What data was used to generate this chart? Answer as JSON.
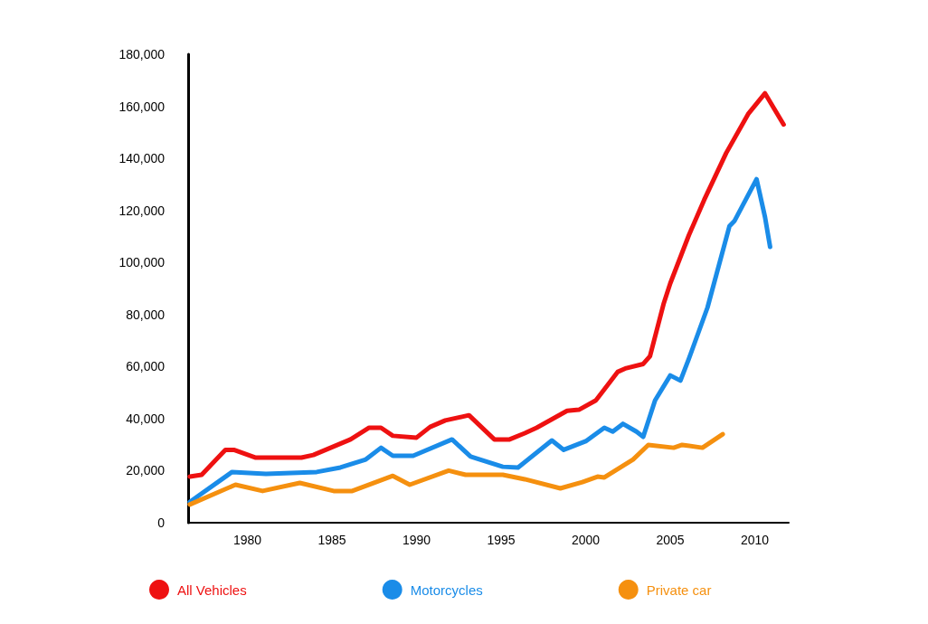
{
  "chart_data": {
    "type": "line",
    "xlim": [
      1976.5,
      2012
    ],
    "xticks": [
      1980,
      1985,
      1990,
      1995,
      2000,
      2005,
      2010
    ],
    "ylim": [
      0,
      180000
    ],
    "yticks": [
      0,
      {
        "value": 20000,
        "label": "20,000"
      },
      {
        "value": 40000,
        "label": "40,000"
      },
      {
        "value": 60000,
        "label": "60,000"
      },
      {
        "value": 80000,
        "label": "80,000"
      },
      {
        "value": 100000,
        "label": "100,000"
      },
      {
        "value": 120000,
        "label": "120,000"
      },
      {
        "value": 140000,
        "label": "140,000"
      },
      {
        "value": 160000,
        "label": "160,000"
      },
      {
        "value": 180000,
        "label": "180,000"
      }
    ],
    "grid": false,
    "legend": "bottom",
    "marker": "none",
    "line_style": "solid",
    "series": [
      {
        "name": "All Vehicles",
        "color": "#ee1111",
        "x": [
          1976.6,
          1977.3,
          1978.7,
          1979.2,
          1980.5,
          1983.2,
          1983.9,
          1986.1,
          1987.2,
          1987.9,
          1988.6,
          1990,
          1990.8,
          1991.7,
          1993.1,
          1994.6,
          1995.5,
          1996.4,
          1997.1,
          1998.9,
          1999.6,
          2000.6,
          2001,
          2001.9,
          2002.4,
          2003.4,
          2003.8,
          2004.6,
          2005,
          2006.1,
          2007,
          2008.3,
          2009.6,
          2010.6,
          2011.7
        ],
        "values": [
          17700,
          18400,
          28000,
          28000,
          25000,
          25000,
          26000,
          32000,
          36500,
          36500,
          33400,
          32700,
          36800,
          39300,
          41300,
          32000,
          32000,
          34400,
          36500,
          43000,
          43400,
          47000,
          50400,
          58000,
          59400,
          61000,
          64000,
          84000,
          92000,
          110500,
          124000,
          142000,
          157000,
          165000,
          153000
        ]
      },
      {
        "name": "Motorcycles",
        "color": "#1a8ce8",
        "x": [
          1976.6,
          1979.1,
          1981.1,
          1984.1,
          1985.5,
          1987,
          1987.9,
          1988.6,
          1989.8,
          1992.1,
          1993.2,
          1995.1,
          1996,
          1998,
          1998.7,
          2000,
          2001.1,
          2001.6,
          2002.2,
          2003,
          2003.4,
          2004.1,
          2005,
          2005.6,
          2006.1,
          2007.2,
          2008.5,
          2008.8,
          2010.1,
          2010.6,
          2010.9
        ],
        "values": [
          8000,
          19500,
          18800,
          19500,
          21200,
          24300,
          28800,
          25700,
          25700,
          32000,
          25400,
          21500,
          21200,
          31600,
          28000,
          31300,
          36500,
          35000,
          38000,
          35000,
          33000,
          47000,
          56600,
          54600,
          63000,
          82700,
          114000,
          116000,
          132000,
          117400,
          106000
        ]
      },
      {
        "name": "Private car",
        "color": "#f5900f",
        "x": [
          1976.6,
          1979.3,
          1980.9,
          1983.1,
          1985.1,
          1986.2,
          1988.6,
          1989.6,
          1991.9,
          1992.9,
          1995.1,
          1996.4,
          1998.5,
          1999.8,
          2000.7,
          2001.1,
          2002.8,
          2003.7,
          2005.2,
          2005.7,
          2006.9,
          2008.1
        ],
        "values": [
          7000,
          14600,
          12200,
          15300,
          12200,
          12200,
          18000,
          14600,
          20000,
          18400,
          18400,
          16700,
          13200,
          15600,
          17700,
          17400,
          24300,
          29900,
          28800,
          29900,
          28800,
          34000
        ]
      }
    ]
  }
}
